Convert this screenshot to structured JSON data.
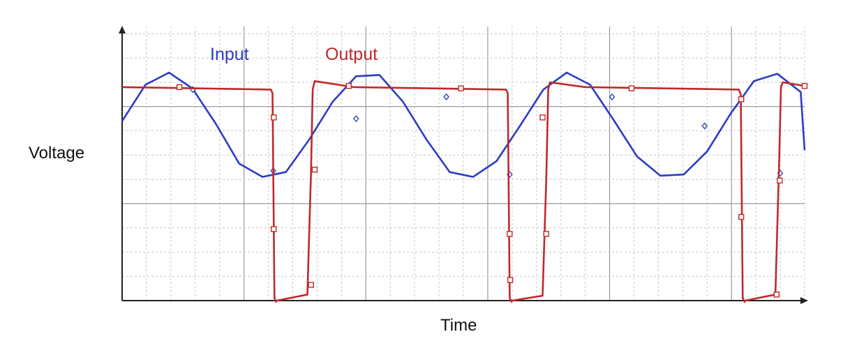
{
  "chart_data": {
    "type": "line",
    "title": "",
    "xlabel": "Time",
    "ylabel": "Voltage",
    "xlim": [
      0,
      28
    ],
    "ylim": [
      0,
      11.3
    ],
    "grid": true,
    "legend": "top-left",
    "colors": {
      "input": "#2b3cc4",
      "output": "#c0282a",
      "grid_major": "#9a9a9a",
      "grid_minor": "#c8c8c8",
      "axis": "#222222"
    },
    "series": [
      {
        "name": "Input",
        "key": "input",
        "marker": "diamond",
        "x": [
          0,
          0.96,
          1.92,
          2.88,
          3.84,
          4.8,
          5.76,
          6.72,
          7.68,
          8.64,
          9.6,
          10.56,
          11.52,
          12.48,
          13.44,
          14.4,
          15.36,
          16.32,
          17.28,
          18.24,
          19.2,
          20.16,
          21.12,
          22.08,
          23.04,
          24,
          24.96,
          25.92,
          26.88,
          27.84,
          28
        ],
        "y": [
          7.4,
          8.9,
          9.4,
          8.75,
          7.3,
          5.65,
          5.1,
          5.3,
          6.65,
          8.2,
          9.25,
          9.3,
          8.2,
          6.65,
          5.3,
          5.1,
          5.75,
          7.2,
          8.7,
          9.4,
          8.9,
          7.45,
          5.95,
          5.15,
          5.2,
          6.15,
          7.7,
          9.05,
          9.35,
          8.6,
          6.2
        ],
        "markers_x": [
          2.9,
          6.2,
          9.6,
          13.3,
          15.9,
          20.1,
          23.9,
          27.0
        ],
        "markers_y": [
          8.7,
          5.35,
          7.5,
          8.4,
          5.2,
          8.4,
          7.2,
          5.25
        ]
      },
      {
        "name": "Output",
        "key": "output",
        "marker": "square",
        "x": [
          0,
          6.1,
          6.17,
          6.25,
          6.32,
          6.35,
          7.6,
          7.75,
          7.82,
          7.9,
          9.5,
          15.75,
          15.82,
          15.9,
          15.98,
          16.0,
          17.25,
          17.4,
          17.48,
          17.55,
          19.0,
          25.3,
          25.38,
          25.46,
          25.54,
          25.56,
          26.8,
          26.95,
          27.03,
          27.1,
          28
        ],
        "y": [
          8.8,
          8.7,
          8.55,
          0.1,
          -0.05,
          0,
          0.25,
          5.3,
          8.7,
          9.05,
          8.8,
          8.7,
          8.55,
          0.1,
          -0.05,
          0,
          0.2,
          5.0,
          8.7,
          9.0,
          8.8,
          8.7,
          8.5,
          0.1,
          -0.05,
          0,
          0.25,
          5.5,
          8.8,
          9.0,
          8.85
        ],
        "markers_x": [
          2.35,
          6.22,
          6.22,
          7.75,
          7.9,
          9.3,
          13.9,
          15.92,
          15.9,
          17.25,
          17.4,
          20.9,
          25.4,
          25.4,
          26.85,
          26.98,
          28.0
        ],
        "markers_y": [
          8.8,
          7.55,
          2.95,
          0.65,
          5.4,
          8.85,
          8.75,
          0.85,
          2.75,
          7.55,
          2.75,
          8.75,
          8.3,
          3.45,
          0.25,
          4.95,
          8.85
        ]
      }
    ]
  }
}
